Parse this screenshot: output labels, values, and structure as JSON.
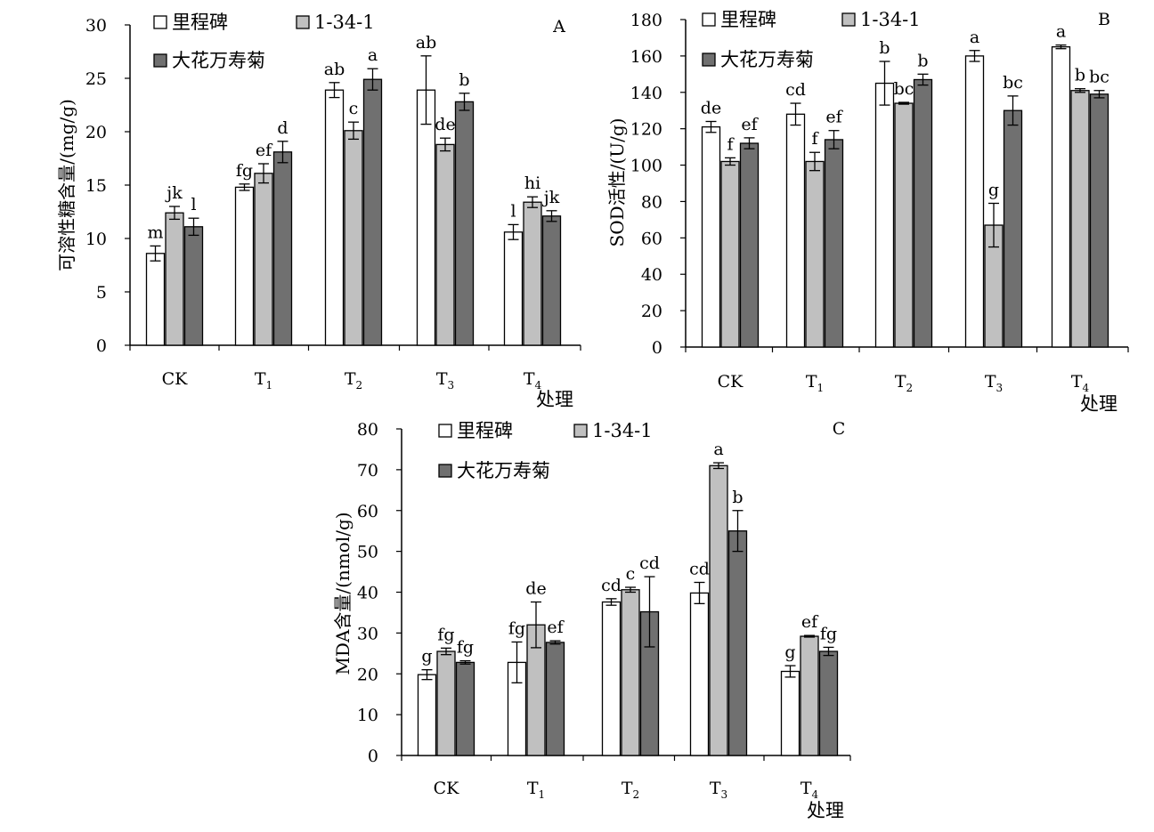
{
  "series_colors": [
    "#ffffff",
    "#c0c0c0",
    "#707070"
  ],
  "chart_data": [
    {
      "type": "bar",
      "panel_label": "A",
      "ylabel": "可溶性糖含量/(mg/g)",
      "xlabel": "处理",
      "ylim": [
        0,
        30
      ],
      "yticks": [
        0,
        5,
        10,
        15,
        20,
        25,
        30
      ],
      "categories": [
        "CK",
        "T1",
        "T2",
        "T3",
        "T4"
      ],
      "legend": [
        "里程碑",
        "1-34-1",
        "大花万寿菊"
      ],
      "series": [
        {
          "name": "里程碑",
          "values": [
            8.6,
            14.8,
            23.9,
            23.9,
            10.6
          ],
          "errors": [
            0.7,
            0.3,
            0.7,
            3.2,
            0.7
          ],
          "labels": [
            "m",
            "fg",
            "ab",
            "ab",
            "l"
          ]
        },
        {
          "name": "1-34-1",
          "values": [
            12.4,
            16.1,
            20.1,
            18.8,
            13.4
          ],
          "errors": [
            0.6,
            0.9,
            0.8,
            0.6,
            0.5
          ],
          "labels": [
            "jk",
            "ef",
            "c",
            "de",
            "hi"
          ]
        },
        {
          "name": "大花万寿菊",
          "values": [
            11.1,
            18.1,
            24.9,
            22.8,
            12.1
          ],
          "errors": [
            0.8,
            1.0,
            1.0,
            0.8,
            0.5
          ],
          "labels": [
            "l",
            "d",
            "a",
            "b",
            "jk"
          ]
        }
      ]
    },
    {
      "type": "bar",
      "panel_label": "B",
      "ylabel": "SOD活性/(U/g)",
      "xlabel": "处理",
      "ylim": [
        0,
        180
      ],
      "yticks": [
        0,
        20,
        40,
        60,
        80,
        100,
        120,
        140,
        160,
        180
      ],
      "categories": [
        "CK",
        "T1",
        "T2",
        "T3",
        "T4"
      ],
      "legend": [
        "里程碑",
        "1-34-1",
        "大花万寿菊"
      ],
      "series": [
        {
          "name": "里程碑",
          "values": [
            121,
            128,
            145,
            160,
            165
          ],
          "errors": [
            3,
            6,
            12,
            3,
            1
          ],
          "labels": [
            "de",
            "cd",
            "b",
            "a",
            "a"
          ]
        },
        {
          "name": "1-34-1",
          "values": [
            102,
            102,
            134,
            67,
            141
          ],
          "errors": [
            2,
            5,
            0.5,
            12,
            1
          ],
          "labels": [
            "f",
            "f",
            "bc",
            "g",
            "b"
          ]
        },
        {
          "name": "大花万寿菊",
          "values": [
            112,
            114,
            147,
            130,
            139
          ],
          "errors": [
            3,
            5,
            3,
            8,
            2
          ],
          "labels": [
            "ef",
            "ef",
            "b",
            "bc",
            "bc"
          ]
        }
      ]
    },
    {
      "type": "bar",
      "panel_label": "C",
      "ylabel": "MDA含量/(nmol/g)",
      "xlabel": "处理",
      "ylim": [
        0,
        80
      ],
      "yticks": [
        0,
        10,
        20,
        30,
        40,
        50,
        60,
        70,
        80
      ],
      "categories": [
        "CK",
        "T1",
        "T2",
        "T3",
        "T4"
      ],
      "legend": [
        "里程碑",
        "1-34-1",
        "大花万寿菊"
      ],
      "series": [
        {
          "name": "里程碑",
          "values": [
            19.8,
            22.8,
            37.6,
            39.8,
            20.6
          ],
          "errors": [
            1.2,
            5.0,
            0.8,
            2.6,
            1.4
          ],
          "labels": [
            "g",
            "fg",
            "cd",
            "cd",
            "g"
          ]
        },
        {
          "name": "1-34-1",
          "values": [
            25.5,
            32.0,
            40.6,
            71.0,
            29.2
          ],
          "errors": [
            0.8,
            5.6,
            0.6,
            0.7,
            0.2
          ],
          "labels": [
            "fg",
            "de",
            "c",
            "a",
            "ef"
          ]
        },
        {
          "name": "大花万寿菊",
          "values": [
            22.8,
            27.7,
            35.2,
            55.0,
            25.5
          ],
          "errors": [
            0.4,
            0.4,
            8.6,
            5.0,
            1.0
          ],
          "labels": [
            "fg",
            "ef",
            "cd",
            "b",
            "fg"
          ]
        }
      ]
    }
  ]
}
